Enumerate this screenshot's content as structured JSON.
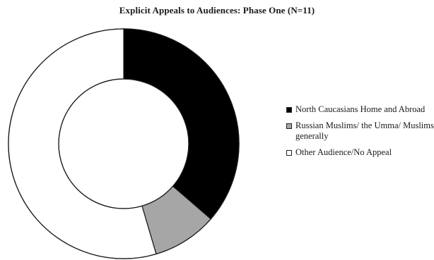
{
  "chart_data": {
    "type": "pie",
    "title": "Explicit Appeals to Audiences: Phase One (N=11)",
    "categories": [
      "North Caucasians Home and Abroad",
      "Russian Muslims/ the Umma/ Muslims generally",
      "Other Audience/No Appeal"
    ],
    "values": [
      4,
      1,
      6
    ],
    "colors": [
      "#000000",
      "#a6a6a6",
      "#ffffff"
    ],
    "donut": true,
    "legend_placement": "right"
  }
}
